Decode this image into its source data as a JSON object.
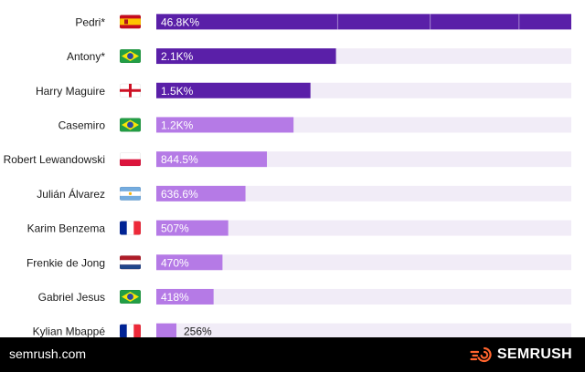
{
  "chart_data": {
    "type": "bar",
    "orientation": "horizontal",
    "categories": [
      "Pedri*",
      "Antony*",
      "Harry Maguire",
      "Casemiro",
      "Robert Lewandowski",
      "Julián Álvarez",
      "Karim Benzema",
      "Frenkie de Jong",
      "Gabriel Jesus",
      "Kylian Mbappé"
    ],
    "flags": [
      "flag-spain-icon",
      "flag-brazil-icon",
      "flag-england-icon",
      "flag-brazil-icon",
      "flag-poland-icon",
      "flag-argentina-icon",
      "flag-france-icon",
      "flag-netherlands-icon",
      "flag-brazil-icon",
      "flag-france-icon"
    ],
    "values": [
      46800,
      2100,
      1500,
      1200,
      844.5,
      636.6,
      507,
      470,
      418,
      256
    ],
    "value_labels": [
      "46.8K%",
      "2.1K%",
      "1.5K%",
      "1.2K%",
      "844.5%",
      "636.6%",
      "507%",
      "470%",
      "418%",
      "256%"
    ],
    "xscale": "log",
    "legend": "none",
    "colors": {
      "dark": "#5a1fa8",
      "light": "#b57ae6",
      "track": "#f1ecf7",
      "label": "#1a1a1a"
    }
  },
  "footer": {
    "url": "semrush.com",
    "brand": "SEMRUSH",
    "logo_icon": "semrush-fireball-icon",
    "logo_color": "#ff642d"
  }
}
